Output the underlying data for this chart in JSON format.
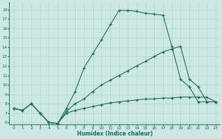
{
  "xlabel": "Humidex (Indice chaleur)",
  "background_color": "#cde8e4",
  "grid_color": "#b0d4ce",
  "line_color": "#1a6b5a",
  "xlim": [
    -0.5,
    23.5
  ],
  "ylim": [
    5.8,
    18.8
  ],
  "yticks": [
    6,
    7,
    8,
    9,
    10,
    11,
    12,
    13,
    14,
    15,
    16,
    17,
    18
  ],
  "xticks": [
    0,
    1,
    2,
    3,
    4,
    5,
    6,
    7,
    8,
    9,
    10,
    11,
    12,
    13,
    14,
    15,
    16,
    17,
    18,
    19,
    20,
    21,
    22,
    23
  ],
  "line_top_x": [
    0,
    1,
    2,
    3,
    4,
    5,
    6,
    7,
    8,
    9,
    10,
    11,
    12,
    13,
    14,
    15,
    16,
    17,
    18,
    19,
    20,
    21,
    22,
    23
  ],
  "line_top_y": [
    7.5,
    7.3,
    8.0,
    7.0,
    6.0,
    5.9,
    7.5,
    9.3,
    11.8,
    13.3,
    14.8,
    16.4,
    17.9,
    17.9,
    17.8,
    17.6,
    17.5,
    17.4,
    14.1,
    10.6,
    9.8,
    8.2,
    8.2,
    8.2
  ],
  "line_mid_x": [
    0,
    1,
    2,
    3,
    4,
    5,
    6,
    7,
    8,
    9,
    10,
    11,
    12,
    13,
    14,
    15,
    16,
    17,
    18,
    19,
    20,
    21,
    22,
    23
  ],
  "line_mid_y": [
    7.5,
    7.3,
    8.0,
    7.0,
    6.0,
    5.9,
    7.2,
    8.0,
    8.5,
    9.3,
    10.0,
    10.5,
    11.0,
    11.5,
    12.0,
    12.5,
    13.0,
    13.5,
    13.8,
    14.1,
    10.6,
    9.8,
    8.2,
    8.2
  ],
  "line_bot_x": [
    0,
    1,
    2,
    3,
    4,
    5,
    6,
    7,
    8,
    9,
    10,
    11,
    12,
    13,
    14,
    15,
    16,
    17,
    18,
    19,
    20,
    21,
    22,
    23
  ],
  "line_bot_y": [
    7.5,
    7.3,
    8.0,
    7.0,
    6.0,
    5.9,
    7.0,
    7.3,
    7.5,
    7.7,
    7.9,
    8.1,
    8.2,
    8.3,
    8.4,
    8.5,
    8.5,
    8.6,
    8.6,
    8.7,
    8.7,
    8.7,
    8.7,
    8.2
  ]
}
